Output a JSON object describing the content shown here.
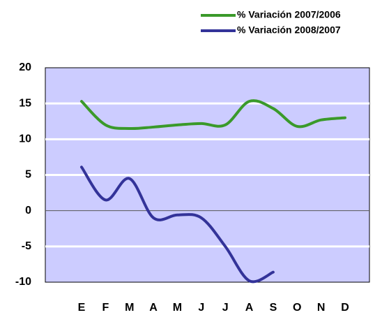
{
  "chart_data": {
    "type": "line",
    "categories": [
      "E",
      "F",
      "M",
      "A",
      "M",
      "J",
      "J",
      "A",
      "S",
      "O",
      "N",
      "D"
    ],
    "series": [
      {
        "name": "% Variación 2007/2006",
        "color": "#3a9a2a",
        "values": [
          15.3,
          12.0,
          11.5,
          11.7,
          12.0,
          12.2,
          12.0,
          15.3,
          14.3,
          11.8,
          12.7,
          13.0
        ]
      },
      {
        "name": "% Variación 2008/2007",
        "color": "#333399",
        "values": [
          6.1,
          1.5,
          4.5,
          -1.0,
          -0.6,
          -1.0,
          -5.0,
          -9.8,
          -8.6,
          null,
          null,
          null
        ]
      }
    ],
    "ylim": [
      -10,
      20
    ],
    "yticks": [
      -10,
      -5,
      0,
      5,
      10,
      15,
      20
    ],
    "grid": true,
    "legend": "top-right"
  }
}
